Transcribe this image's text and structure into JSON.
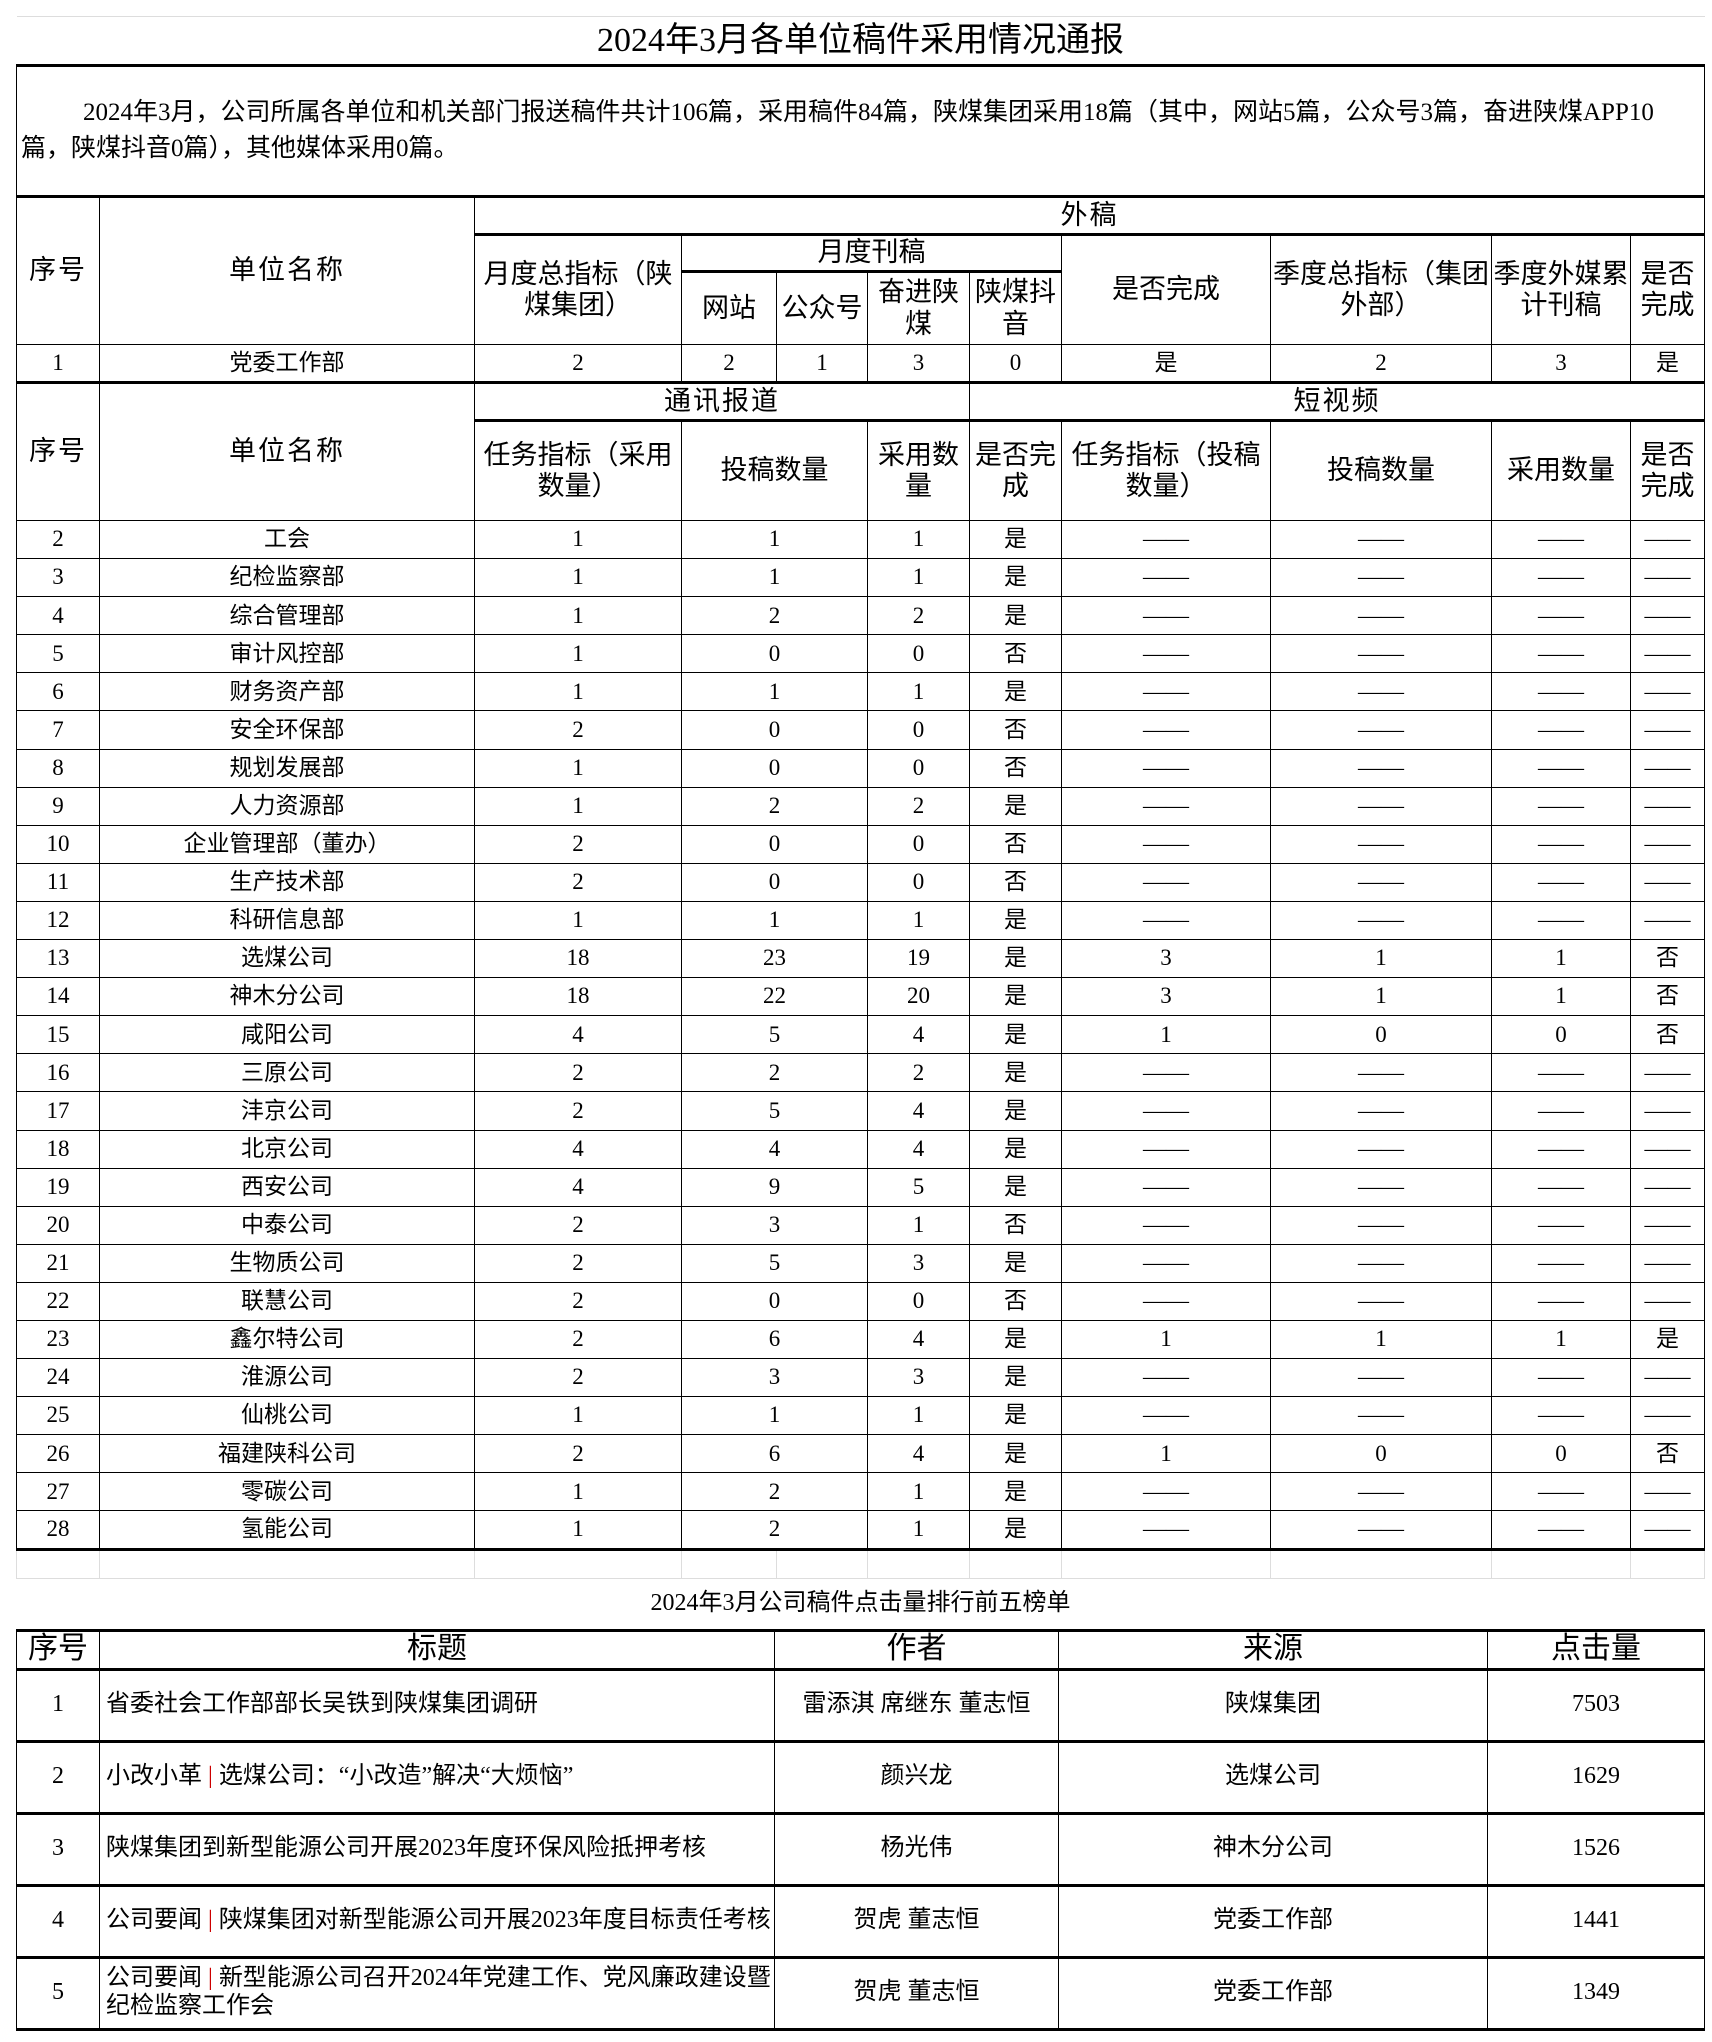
{
  "report": {
    "title": "2024年3月各单位稿件采用情况通报",
    "intro": "2024年3月，公司所属各单位和机关部门报送稿件共计106篇，采用稿件84篇，陕煤集团采用18篇（其中，网站5篇，公众号3篇，奋进陕煤APP10篇，陕煤抖音0篇），其他媒体采用0篇。",
    "header1": {
      "seq": "序号",
      "unit": "单位名称",
      "external": "外稿",
      "monthly_total": "月度总指标（陕煤集团）",
      "monthly_pub": "月度刊稿",
      "website": "网站",
      "wechat": "公众号",
      "app": "奋进陕煤",
      "douyin": "陕煤抖音",
      "done": "是否完成",
      "quarter_total": "季度总指标（集团外部）",
      "quarter_cum": "季度外媒累计刊稿",
      "quarter_done": "是否完成"
    },
    "row1": [
      "1",
      "党委工作部",
      "2",
      "2",
      "1",
      "3",
      "0",
      "是",
      "2",
      "3",
      "是"
    ],
    "header2": {
      "seq": "序号",
      "unit": "单位名称",
      "news": "通讯报道",
      "video": "短视频",
      "task": "任务指标（采用数量）",
      "submit": "投稿数量",
      "adopt": "采用数量",
      "done": "是否完成",
      "v_task": "任务指标（投稿数量）",
      "v_submit": "投稿数量",
      "v_adopt": "采用数量",
      "v_done": "是否完成"
    },
    "rows": [
      [
        "2",
        "工会",
        "1",
        "1",
        "1",
        "是",
        "——",
        "——",
        "——",
        "——"
      ],
      [
        "3",
        "纪检监察部",
        "1",
        "1",
        "1",
        "是",
        "——",
        "——",
        "——",
        "——"
      ],
      [
        "4",
        "综合管理部",
        "1",
        "2",
        "2",
        "是",
        "——",
        "——",
        "——",
        "——"
      ],
      [
        "5",
        "审计风控部",
        "1",
        "0",
        "0",
        "否",
        "——",
        "——",
        "——",
        "——"
      ],
      [
        "6",
        "财务资产部",
        "1",
        "1",
        "1",
        "是",
        "——",
        "——",
        "——",
        "——"
      ],
      [
        "7",
        "安全环保部",
        "2",
        "0",
        "0",
        "否",
        "——",
        "——",
        "——",
        "——"
      ],
      [
        "8",
        "规划发展部",
        "1",
        "0",
        "0",
        "否",
        "——",
        "——",
        "——",
        "——"
      ],
      [
        "9",
        "人力资源部",
        "1",
        "2",
        "2",
        "是",
        "——",
        "——",
        "——",
        "——"
      ],
      [
        "10",
        "企业管理部（董办）",
        "2",
        "0",
        "0",
        "否",
        "——",
        "——",
        "——",
        "——"
      ],
      [
        "11",
        "生产技术部",
        "2",
        "0",
        "0",
        "否",
        "——",
        "——",
        "——",
        "——"
      ],
      [
        "12",
        "科研信息部",
        "1",
        "1",
        "1",
        "是",
        "——",
        "——",
        "——",
        "——"
      ],
      [
        "13",
        "选煤公司",
        "18",
        "23",
        "19",
        "是",
        "3",
        "1",
        "1",
        "否"
      ],
      [
        "14",
        "神木分公司",
        "18",
        "22",
        "20",
        "是",
        "3",
        "1",
        "1",
        "否"
      ],
      [
        "15",
        "咸阳公司",
        "4",
        "5",
        "4",
        "是",
        "1",
        "0",
        "0",
        "否"
      ],
      [
        "16",
        "三原公司",
        "2",
        "2",
        "2",
        "是",
        "——",
        "——",
        "——",
        "——"
      ],
      [
        "17",
        "沣京公司",
        "2",
        "5",
        "4",
        "是",
        "——",
        "——",
        "——",
        "——"
      ],
      [
        "18",
        "北京公司",
        "4",
        "4",
        "4",
        "是",
        "——",
        "——",
        "——",
        "——"
      ],
      [
        "19",
        "西安公司",
        "4",
        "9",
        "5",
        "是",
        "——",
        "——",
        "——",
        "——"
      ],
      [
        "20",
        "中泰公司",
        "2",
        "3",
        "1",
        "否",
        "——",
        "——",
        "——",
        "——"
      ],
      [
        "21",
        "生物质公司",
        "2",
        "5",
        "3",
        "是",
        "——",
        "——",
        "——",
        "——"
      ],
      [
        "22",
        "联慧公司",
        "2",
        "0",
        "0",
        "否",
        "——",
        "——",
        "——",
        "——"
      ],
      [
        "23",
        "鑫尔特公司",
        "2",
        "6",
        "4",
        "是",
        "1",
        "1",
        "1",
        "是"
      ],
      [
        "24",
        "淮源公司",
        "2",
        "3",
        "3",
        "是",
        "——",
        "——",
        "——",
        "——"
      ],
      [
        "25",
        "仙桃公司",
        "1",
        "1",
        "1",
        "是",
        "——",
        "——",
        "——",
        "——"
      ],
      [
        "26",
        "福建陕科公司",
        "2",
        "6",
        "4",
        "是",
        "1",
        "0",
        "0",
        "否"
      ],
      [
        "27",
        "零碳公司",
        "1",
        "2",
        "1",
        "是",
        "——",
        "——",
        "——",
        "——"
      ],
      [
        "28",
        "氢能公司",
        "1",
        "2",
        "1",
        "是",
        "——",
        "——",
        "——",
        "——"
      ]
    ]
  },
  "ranking": {
    "title": "2024年3月公司稿件点击量排行前五榜单",
    "headers": [
      "序号",
      "标题",
      "作者",
      "来源",
      "点击量"
    ],
    "rows": [
      {
        "seq": "1",
        "prefix": "",
        "sep": "",
        "title": "省委社会工作部部长吴铁到陕煤集团调研",
        "author": "雷添淇  席继东  董志恒",
        "source": "陕煤集团",
        "clicks": "7503"
      },
      {
        "seq": "2",
        "prefix": "小改小革 ",
        "sep": "|",
        "title": " 选煤公司：“小改造”解决“大烦恼”",
        "author": "颜兴龙",
        "source": "选煤公司",
        "clicks": "1629"
      },
      {
        "seq": "3",
        "prefix": "",
        "sep": "",
        "title": "陕煤集团到新型能源公司开展2023年度环保风险抵押考核",
        "author": "杨光伟",
        "source": "神木分公司",
        "clicks": "1526"
      },
      {
        "seq": "4",
        "prefix": "公司要闻 ",
        "sep": "|",
        "title": " 陕煤集团对新型能源公司开展2023年度目标责任考核",
        "author": "贺虎  董志恒",
        "source": "党委工作部",
        "clicks": "1441"
      },
      {
        "seq": "5",
        "prefix": "公司要闻 ",
        "sep": "|",
        "title": " 新型能源公司召开2024年党建工作、党风廉政建设暨纪检监察工作会",
        "author": "贺虎  董志恒",
        "source": "党委工作部",
        "clicks": "1349"
      }
    ],
    "separator_color": "#cc0000"
  }
}
